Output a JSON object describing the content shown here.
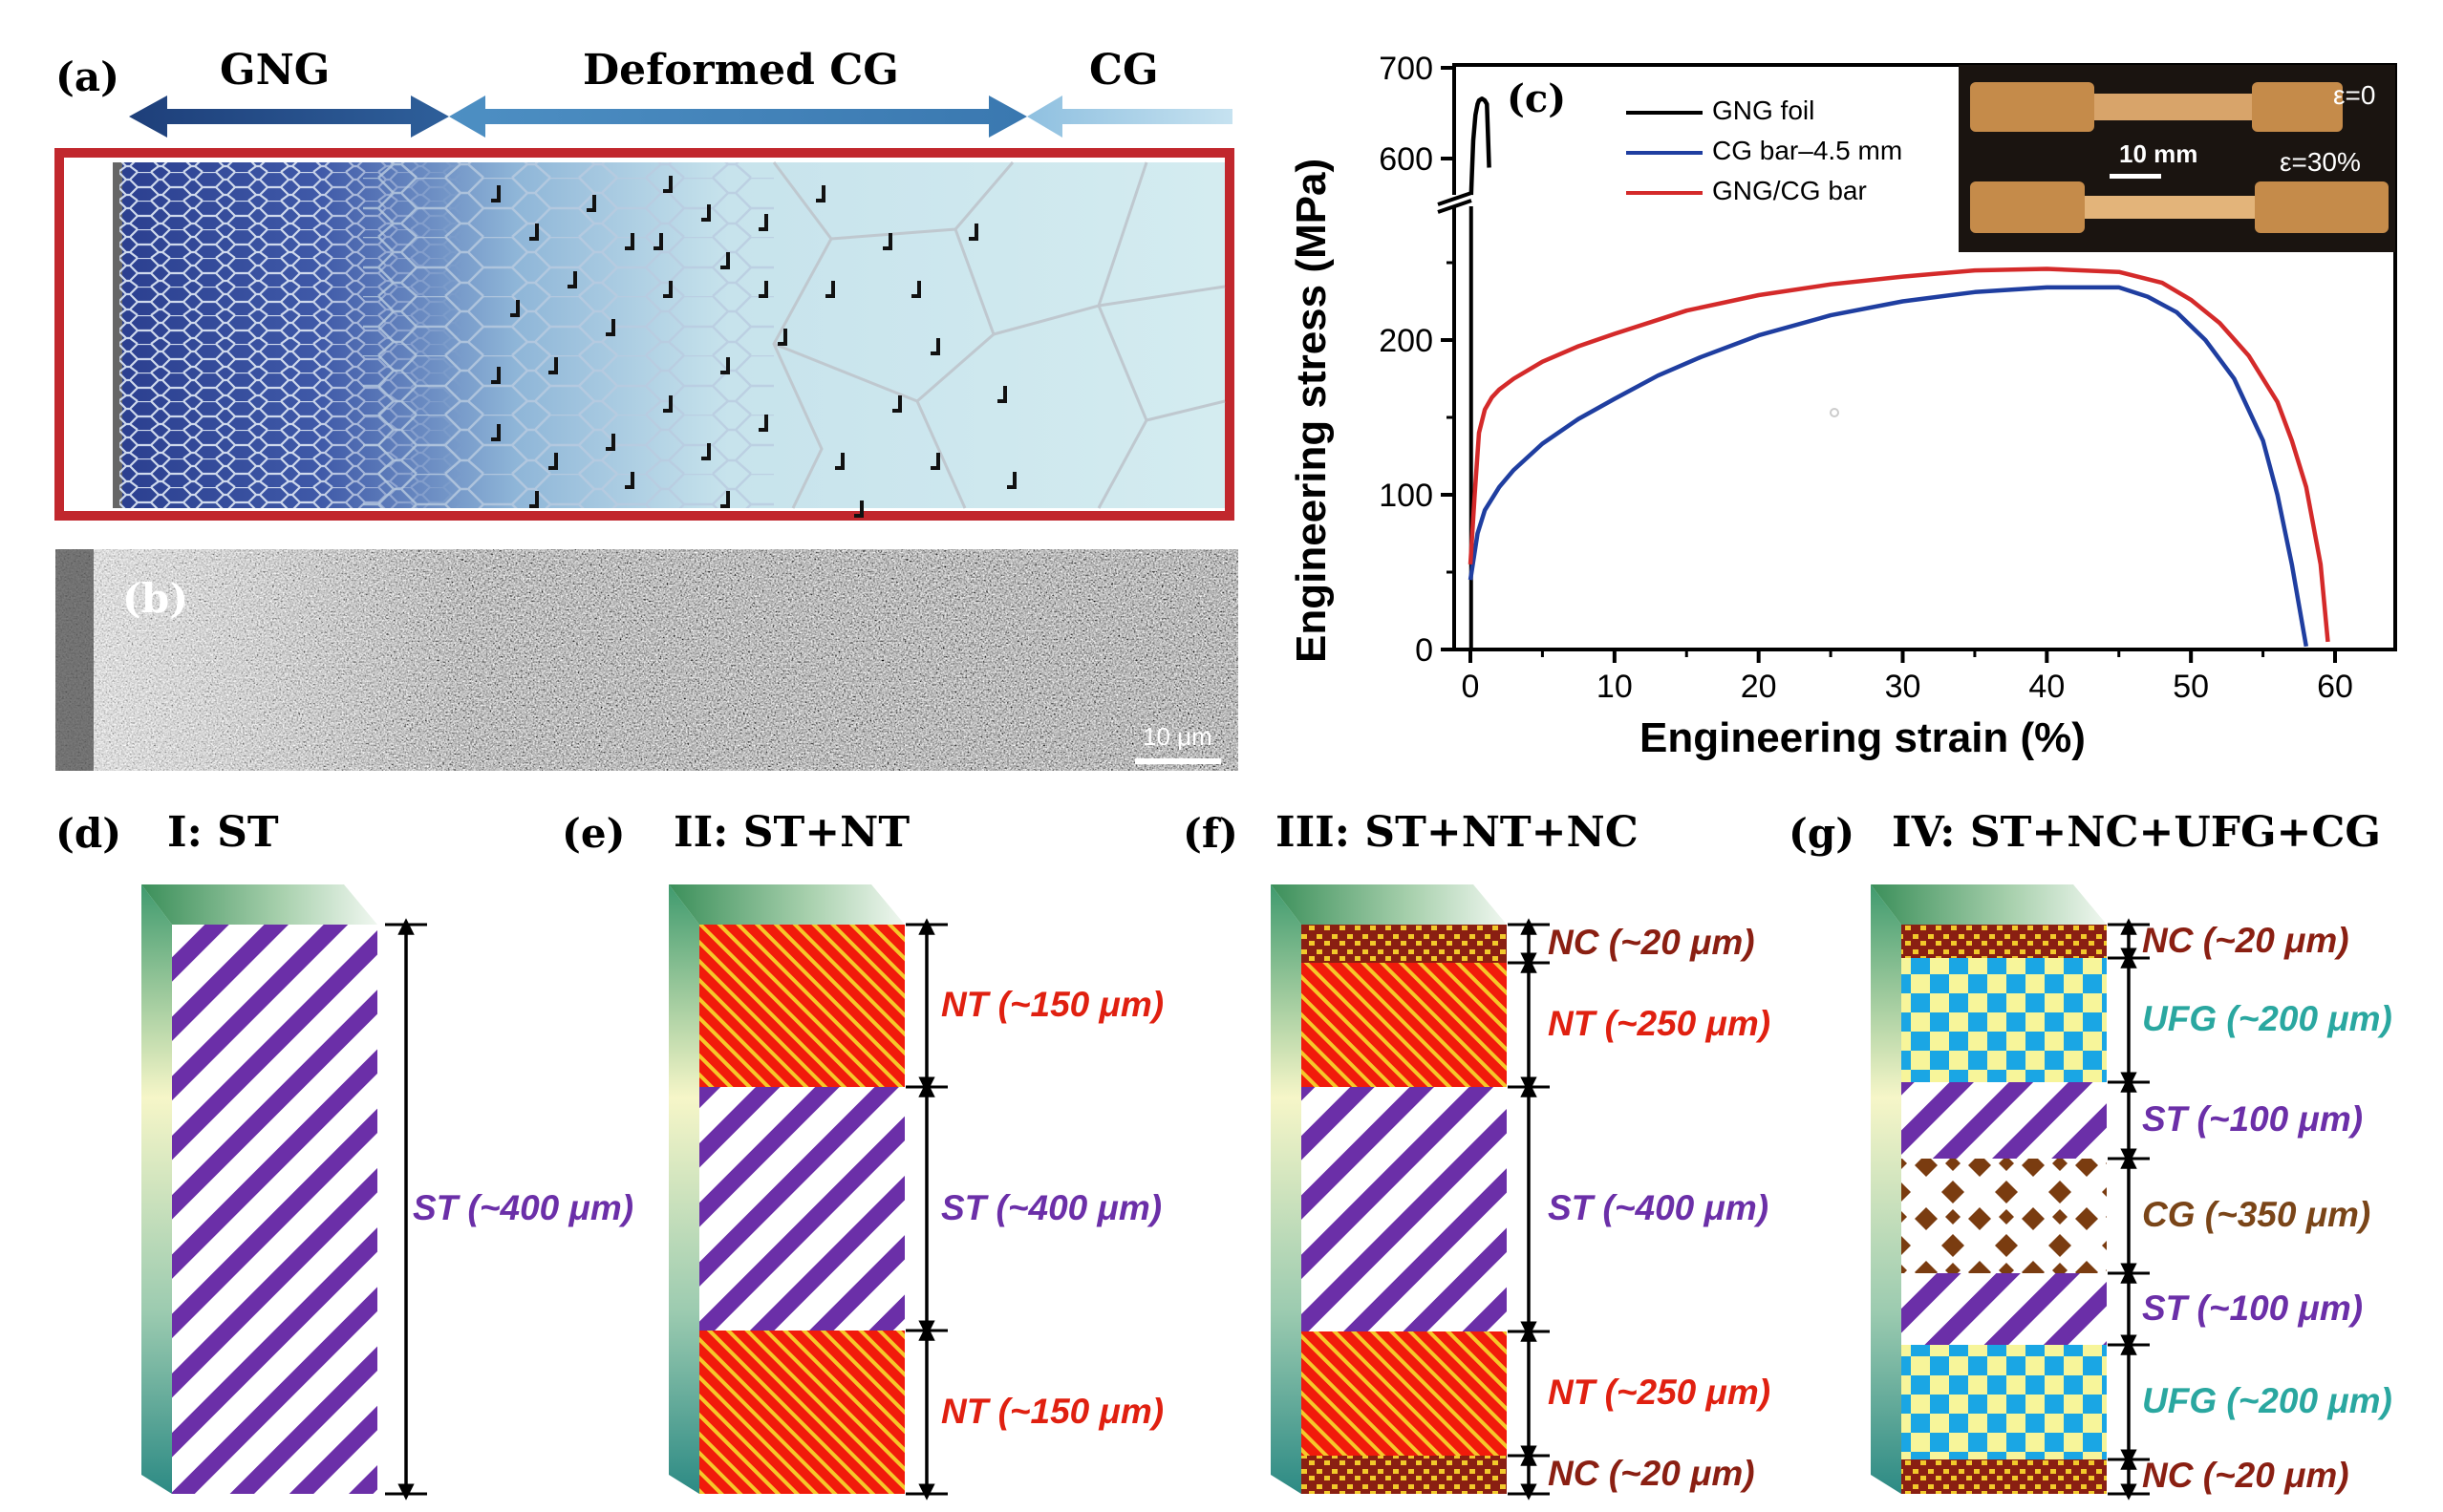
{
  "panel_a": {
    "label": "(a)",
    "zones": [
      "GNG",
      "Deformed CG",
      "CG"
    ]
  },
  "panel_b": {
    "label": "(b)",
    "scale_bar": "10 μm"
  },
  "chart_data": {
    "type": "line",
    "label": "(c)",
    "xlabel": "Engineering strain (%)",
    "ylabel": "Engineering stress (MPa)",
    "xlim": [
      0,
      60
    ],
    "ylim_lower": [
      0,
      300
    ],
    "ylim_upper": [
      560,
      710
    ],
    "x_ticks": [
      "0",
      "10",
      "20",
      "30",
      "40",
      "50",
      "60"
    ],
    "y_ticks": [
      "0",
      "100",
      "200",
      "600",
      "700"
    ],
    "axis_break": true,
    "legend": [
      "GNG foil",
      "CG bar–4.5 mm",
      "GNG/CG bar"
    ],
    "series": [
      {
        "name": "GNG foil",
        "color": "#000000",
        "axis": "upper",
        "x": [
          0.05,
          0.1,
          0.2,
          0.35,
          0.5,
          0.6,
          0.8,
          1.0,
          1.15,
          1.3
        ],
        "y": [
          560,
          580,
          620,
          648,
          660,
          664,
          666,
          664,
          660,
          590
        ]
      },
      {
        "name": "CG bar–4.5 mm",
        "color": "#1f3ea0",
        "axis": "lower",
        "x": [
          0,
          0.5,
          1,
          2,
          3,
          5,
          7.5,
          10,
          13,
          16,
          20,
          25,
          30,
          35,
          40,
          45,
          47,
          49,
          51,
          53,
          55,
          56,
          57,
          58
        ],
        "y": [
          45,
          75,
          90,
          105,
          116,
          133,
          149,
          162,
          177,
          189,
          203,
          216,
          225,
          231,
          234,
          234,
          228,
          218,
          200,
          175,
          135,
          100,
          55,
          2
        ]
      },
      {
        "name": "GNG/CG bar",
        "color": "#d42a2a",
        "axis": "lower",
        "x": [
          0,
          0.3,
          0.6,
          1,
          1.5,
          2,
          3,
          5,
          7.5,
          10,
          15,
          20,
          25,
          30,
          35,
          40,
          45,
          48,
          50,
          52,
          54,
          56,
          57,
          58,
          59,
          59.5
        ],
        "y": [
          55,
          100,
          140,
          155,
          163,
          168,
          175,
          186,
          196,
          204,
          219,
          229,
          236,
          241,
          245,
          246,
          244,
          237,
          226,
          211,
          190,
          160,
          135,
          105,
          55,
          5
        ]
      }
    ]
  },
  "inset": {
    "strain0": "ε=0",
    "strain30": "ε=30%",
    "scale": "10 mm"
  },
  "panels_bottom": [
    {
      "label": "(d)",
      "title": "I: ST",
      "layers": [
        {
          "text": "ST (~400 μm)",
          "color": "#6b2fa8"
        }
      ]
    },
    {
      "label": "(e)",
      "title": "II: ST+NT",
      "layers": [
        {
          "text": "NT (~150 μm)",
          "color": "#e02010"
        },
        {
          "text": "ST (~400 μm)",
          "color": "#6b2fa8"
        },
        {
          "text": "NT (~150 μm)",
          "color": "#e02010"
        }
      ]
    },
    {
      "label": "(f)",
      "title": "III: ST+NT+NC",
      "layers": [
        {
          "text": "NC (~20 μm)",
          "color": "#8a1f12"
        },
        {
          "text": "NT (~250 μm)",
          "color": "#e02010"
        },
        {
          "text": "ST (~400 μm)",
          "color": "#6b2fa8"
        },
        {
          "text": "NT (~250 μm)",
          "color": "#e02010"
        },
        {
          "text": "NC (~20 μm)",
          "color": "#8a1f12"
        }
      ]
    },
    {
      "label": "(g)",
      "title": "IV: ST+NC+UFG+CG",
      "layers": [
        {
          "text": "NC (~20 μm)",
          "color": "#8a1f12"
        },
        {
          "text": "UFG (~200 μm)",
          "color": "#2aa7a0"
        },
        {
          "text": "ST (~100 μm)",
          "color": "#6b2fa8"
        },
        {
          "text": "CG (~350 μm)",
          "color": "#7a4518"
        },
        {
          "text": "ST (~100 μm)",
          "color": "#6b2fa8"
        },
        {
          "text": "UFG (~200 μm)",
          "color": "#2aa7a0"
        },
        {
          "text": "NC (~20 μm)",
          "color": "#8a1f12"
        }
      ]
    }
  ]
}
